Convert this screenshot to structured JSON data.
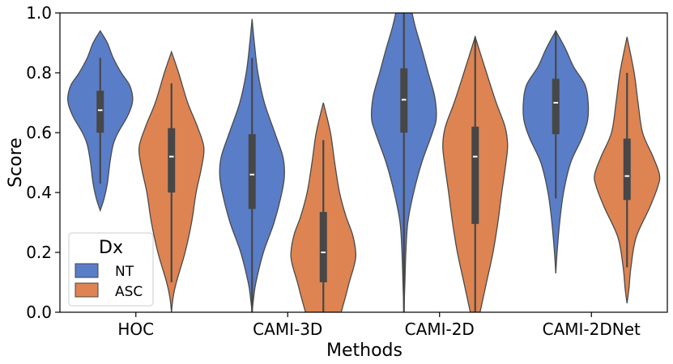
{
  "chart_data": {
    "type": "violin",
    "xlabel": "Methods",
    "ylabel": "Score",
    "ylim": [
      0.0,
      1.0
    ],
    "y_ticks": [
      "0.0",
      "0.2",
      "0.4",
      "0.6",
      "0.8",
      "1.0"
    ],
    "categories": [
      "HOC",
      "CAMI-3D",
      "CAMI-2D",
      "CAMI-2DNet"
    ],
    "grid": false,
    "legend": {
      "title": "Dx",
      "placement": "lower-left",
      "entries": [
        {
          "name": "NT",
          "color": "#5a7dc8"
        },
        {
          "name": "ASC",
          "color": "#dd8452"
        }
      ]
    },
    "series": [
      {
        "name": "NT",
        "color": "#5a7dc8",
        "violins": [
          {
            "min": 0.34,
            "max": 0.94,
            "q1": 0.6,
            "median": 0.675,
            "q3": 0.74,
            "whisker_low": 0.43,
            "whisker_high": 0.85,
            "profile": [
              [
                0.34,
                0.0
              ],
              [
                0.38,
                0.12
              ],
              [
                0.43,
                0.22
              ],
              [
                0.5,
                0.3
              ],
              [
                0.56,
                0.4
              ],
              [
                0.6,
                0.55
              ],
              [
                0.65,
                0.82
              ],
              [
                0.69,
                0.97
              ],
              [
                0.72,
                1.0
              ],
              [
                0.76,
                0.9
              ],
              [
                0.8,
                0.65
              ],
              [
                0.85,
                0.4
              ],
              [
                0.9,
                0.22
              ],
              [
                0.94,
                0.0
              ]
            ]
          },
          {
            "min": 0.0,
            "max": 0.98,
            "q1": 0.345,
            "median": 0.46,
            "q3": 0.595,
            "whisker_low": 0.0,
            "whisker_high": 0.85,
            "profile": [
              [
                0.0,
                0.0
              ],
              [
                0.05,
                0.05
              ],
              [
                0.1,
                0.12
              ],
              [
                0.2,
                0.35
              ],
              [
                0.3,
                0.68
              ],
              [
                0.4,
                0.92
              ],
              [
                0.46,
                1.0
              ],
              [
                0.52,
                0.95
              ],
              [
                0.6,
                0.7
              ],
              [
                0.7,
                0.38
              ],
              [
                0.8,
                0.18
              ],
              [
                0.9,
                0.07
              ],
              [
                0.98,
                0.0
              ]
            ]
          },
          {
            "min": 0.0,
            "max": 1.0,
            "q1": 0.6,
            "median": 0.71,
            "q3": 0.815,
            "whisker_low": 0.0,
            "whisker_high": 1.0,
            "profile": [
              [
                0.0,
                0.0
              ],
              [
                0.1,
                0.03
              ],
              [
                0.2,
                0.06
              ],
              [
                0.3,
                0.12
              ],
              [
                0.4,
                0.3
              ],
              [
                0.5,
                0.55
              ],
              [
                0.6,
                0.88
              ],
              [
                0.65,
                1.0
              ],
              [
                0.72,
                0.95
              ],
              [
                0.8,
                0.75
              ],
              [
                0.88,
                0.55
              ],
              [
                0.95,
                0.36
              ],
              [
                1.0,
                0.25
              ]
            ]
          },
          {
            "min": 0.13,
            "max": 0.94,
            "q1": 0.595,
            "median": 0.7,
            "q3": 0.78,
            "whisker_low": 0.38,
            "whisker_high": 0.94,
            "profile": [
              [
                0.13,
                0.0
              ],
              [
                0.2,
                0.04
              ],
              [
                0.3,
                0.12
              ],
              [
                0.4,
                0.24
              ],
              [
                0.5,
                0.46
              ],
              [
                0.58,
                0.8
              ],
              [
                0.64,
                0.98
              ],
              [
                0.7,
                1.0
              ],
              [
                0.76,
                0.9
              ],
              [
                0.82,
                0.55
              ],
              [
                0.88,
                0.3
              ],
              [
                0.94,
                0.0
              ]
            ]
          }
        ]
      },
      {
        "name": "ASC",
        "color": "#dd8452",
        "violins": [
          {
            "min": 0.0,
            "max": 0.87,
            "q1": 0.4,
            "median": 0.52,
            "q3": 0.615,
            "whisker_low": 0.1,
            "whisker_high": 0.765,
            "profile": [
              [
                0.0,
                0.0
              ],
              [
                0.05,
                0.05
              ],
              [
                0.1,
                0.15
              ],
              [
                0.2,
                0.42
              ],
              [
                0.3,
                0.62
              ],
              [
                0.4,
                0.76
              ],
              [
                0.48,
                0.92
              ],
              [
                0.55,
                1.0
              ],
              [
                0.62,
                0.8
              ],
              [
                0.7,
                0.5
              ],
              [
                0.8,
                0.22
              ],
              [
                0.87,
                0.0
              ]
            ]
          },
          {
            "min": 0.0,
            "max": 0.7,
            "q1": 0.1,
            "median": 0.2,
            "q3": 0.335,
            "whisker_low": 0.0,
            "whisker_high": 0.575,
            "profile": [
              [
                0.0,
                0.55
              ],
              [
                0.05,
                0.68
              ],
              [
                0.1,
                0.8
              ],
              [
                0.16,
                0.96
              ],
              [
                0.2,
                1.0
              ],
              [
                0.26,
                0.9
              ],
              [
                0.32,
                0.7
              ],
              [
                0.4,
                0.5
              ],
              [
                0.5,
                0.35
              ],
              [
                0.6,
                0.22
              ],
              [
                0.7,
                0.0
              ]
            ]
          },
          {
            "min": 0.0,
            "max": 0.92,
            "q1": 0.295,
            "median": 0.52,
            "q3": 0.62,
            "whisker_low": 0.0,
            "whisker_high": 0.92,
            "profile": [
              [
                0.0,
                0.15
              ],
              [
                0.1,
                0.35
              ],
              [
                0.2,
                0.55
              ],
              [
                0.3,
                0.7
              ],
              [
                0.4,
                0.82
              ],
              [
                0.5,
                0.95
              ],
              [
                0.56,
                1.0
              ],
              [
                0.62,
                0.92
              ],
              [
                0.7,
                0.65
              ],
              [
                0.8,
                0.35
              ],
              [
                0.92,
                0.0
              ]
            ]
          },
          {
            "min": 0.03,
            "max": 0.92,
            "q1": 0.375,
            "median": 0.455,
            "q3": 0.58,
            "whisker_low": 0.15,
            "whisker_high": 0.8,
            "profile": [
              [
                0.03,
                0.0
              ],
              [
                0.08,
                0.06
              ],
              [
                0.15,
                0.12
              ],
              [
                0.25,
                0.28
              ],
              [
                0.35,
                0.7
              ],
              [
                0.42,
                0.95
              ],
              [
                0.46,
                1.0
              ],
              [
                0.52,
                0.8
              ],
              [
                0.6,
                0.48
              ],
              [
                0.7,
                0.34
              ],
              [
                0.8,
                0.22
              ],
              [
                0.92,
                0.0
              ]
            ]
          }
        ]
      }
    ]
  }
}
